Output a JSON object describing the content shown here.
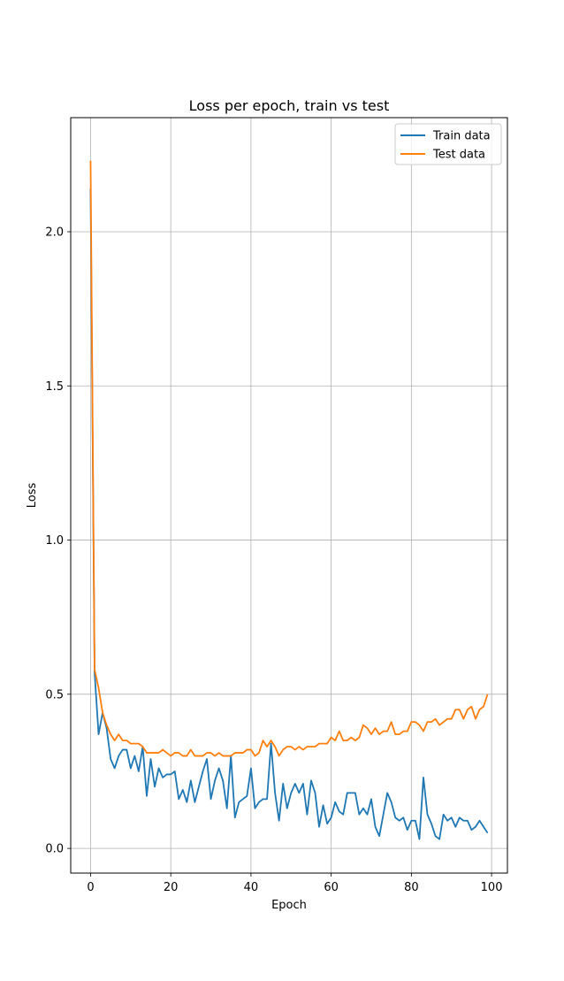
{
  "chart_data": {
    "type": "line",
    "title": "Loss per epoch, train vs test",
    "xlabel": "Epoch",
    "ylabel": "Loss",
    "xlim": [
      -4.95,
      103.95
    ],
    "ylim": [
      -0.08,
      2.37
    ],
    "xticks": [
      0,
      20,
      40,
      60,
      80,
      100
    ],
    "yticks": [
      0.0,
      0.5,
      1.0,
      1.5,
      2.0
    ],
    "xtick_labels": [
      "0",
      "20",
      "40",
      "60",
      "80",
      "100"
    ],
    "ytick_labels": [
      "0.0",
      "0.5",
      "1.0",
      "1.5",
      "2.0"
    ],
    "grid": true,
    "legend_position": "top-right",
    "series": [
      {
        "name": "Train data",
        "color": "#1f77b4",
        "x": [
          0,
          1,
          2,
          3,
          4,
          5,
          6,
          7,
          8,
          9,
          10,
          11,
          12,
          13,
          14,
          15,
          16,
          17,
          18,
          19,
          20,
          21,
          22,
          23,
          24,
          25,
          26,
          27,
          28,
          29,
          30,
          31,
          32,
          33,
          34,
          35,
          36,
          37,
          38,
          39,
          40,
          41,
          42,
          43,
          44,
          45,
          46,
          47,
          48,
          49,
          50,
          51,
          52,
          53,
          54,
          55,
          56,
          57,
          58,
          59,
          60,
          61,
          62,
          63,
          64,
          65,
          66,
          67,
          68,
          69,
          70,
          71,
          72,
          73,
          74,
          75,
          76,
          77,
          78,
          79,
          80,
          81,
          82,
          83,
          84,
          85,
          86,
          87,
          88,
          89,
          90,
          91,
          92,
          93,
          94,
          95,
          96,
          97,
          98,
          99
        ],
        "values": [
          2.14,
          0.57,
          0.37,
          0.44,
          0.39,
          0.29,
          0.26,
          0.3,
          0.32,
          0.32,
          0.26,
          0.3,
          0.25,
          0.33,
          0.17,
          0.29,
          0.2,
          0.26,
          0.23,
          0.24,
          0.24,
          0.25,
          0.16,
          0.19,
          0.15,
          0.22,
          0.15,
          0.2,
          0.25,
          0.29,
          0.16,
          0.22,
          0.26,
          0.22,
          0.13,
          0.3,
          0.1,
          0.15,
          0.16,
          0.17,
          0.26,
          0.13,
          0.15,
          0.16,
          0.16,
          0.34,
          0.18,
          0.09,
          0.21,
          0.13,
          0.18,
          0.21,
          0.18,
          0.21,
          0.11,
          0.22,
          0.18,
          0.07,
          0.14,
          0.08,
          0.1,
          0.15,
          0.12,
          0.11,
          0.18,
          0.18,
          0.18,
          0.11,
          0.13,
          0.11,
          0.16,
          0.07,
          0.04,
          0.11,
          0.18,
          0.15,
          0.1,
          0.09,
          0.1,
          0.06,
          0.09,
          0.09,
          0.03,
          0.23,
          0.11,
          0.08,
          0.04,
          0.03,
          0.11,
          0.09,
          0.1,
          0.07,
          0.1,
          0.09,
          0.09,
          0.06,
          0.07,
          0.09,
          0.07,
          0.05
        ]
      },
      {
        "name": "Test data",
        "color": "#ff7f0e",
        "x": [
          0,
          1,
          2,
          3,
          4,
          5,
          6,
          7,
          8,
          9,
          10,
          11,
          12,
          13,
          14,
          15,
          16,
          17,
          18,
          19,
          20,
          21,
          22,
          23,
          24,
          25,
          26,
          27,
          28,
          29,
          30,
          31,
          32,
          33,
          34,
          35,
          36,
          37,
          38,
          39,
          40,
          41,
          42,
          43,
          44,
          45,
          46,
          47,
          48,
          49,
          50,
          51,
          52,
          53,
          54,
          55,
          56,
          57,
          58,
          59,
          60,
          61,
          62,
          63,
          64,
          65,
          66,
          67,
          68,
          69,
          70,
          71,
          72,
          73,
          74,
          75,
          76,
          77,
          78,
          79,
          80,
          81,
          82,
          83,
          84,
          85,
          86,
          87,
          88,
          89,
          90,
          91,
          92,
          93,
          94,
          95,
          96,
          97,
          98,
          99
        ],
        "values": [
          2.23,
          0.58,
          0.52,
          0.44,
          0.4,
          0.37,
          0.35,
          0.37,
          0.35,
          0.35,
          0.34,
          0.34,
          0.34,
          0.33,
          0.31,
          0.31,
          0.31,
          0.31,
          0.32,
          0.31,
          0.3,
          0.31,
          0.31,
          0.3,
          0.3,
          0.32,
          0.3,
          0.3,
          0.3,
          0.31,
          0.31,
          0.3,
          0.31,
          0.3,
          0.3,
          0.3,
          0.31,
          0.31,
          0.31,
          0.32,
          0.32,
          0.3,
          0.31,
          0.35,
          0.33,
          0.35,
          0.33,
          0.3,
          0.32,
          0.33,
          0.33,
          0.32,
          0.33,
          0.32,
          0.33,
          0.33,
          0.33,
          0.34,
          0.34,
          0.34,
          0.36,
          0.35,
          0.38,
          0.35,
          0.35,
          0.36,
          0.35,
          0.36,
          0.4,
          0.39,
          0.37,
          0.39,
          0.37,
          0.38,
          0.38,
          0.41,
          0.37,
          0.37,
          0.38,
          0.38,
          0.41,
          0.41,
          0.4,
          0.38,
          0.41,
          0.41,
          0.42,
          0.4,
          0.41,
          0.42,
          0.42,
          0.45,
          0.45,
          0.42,
          0.45,
          0.46,
          0.42,
          0.45,
          0.46,
          0.5
        ]
      }
    ]
  }
}
